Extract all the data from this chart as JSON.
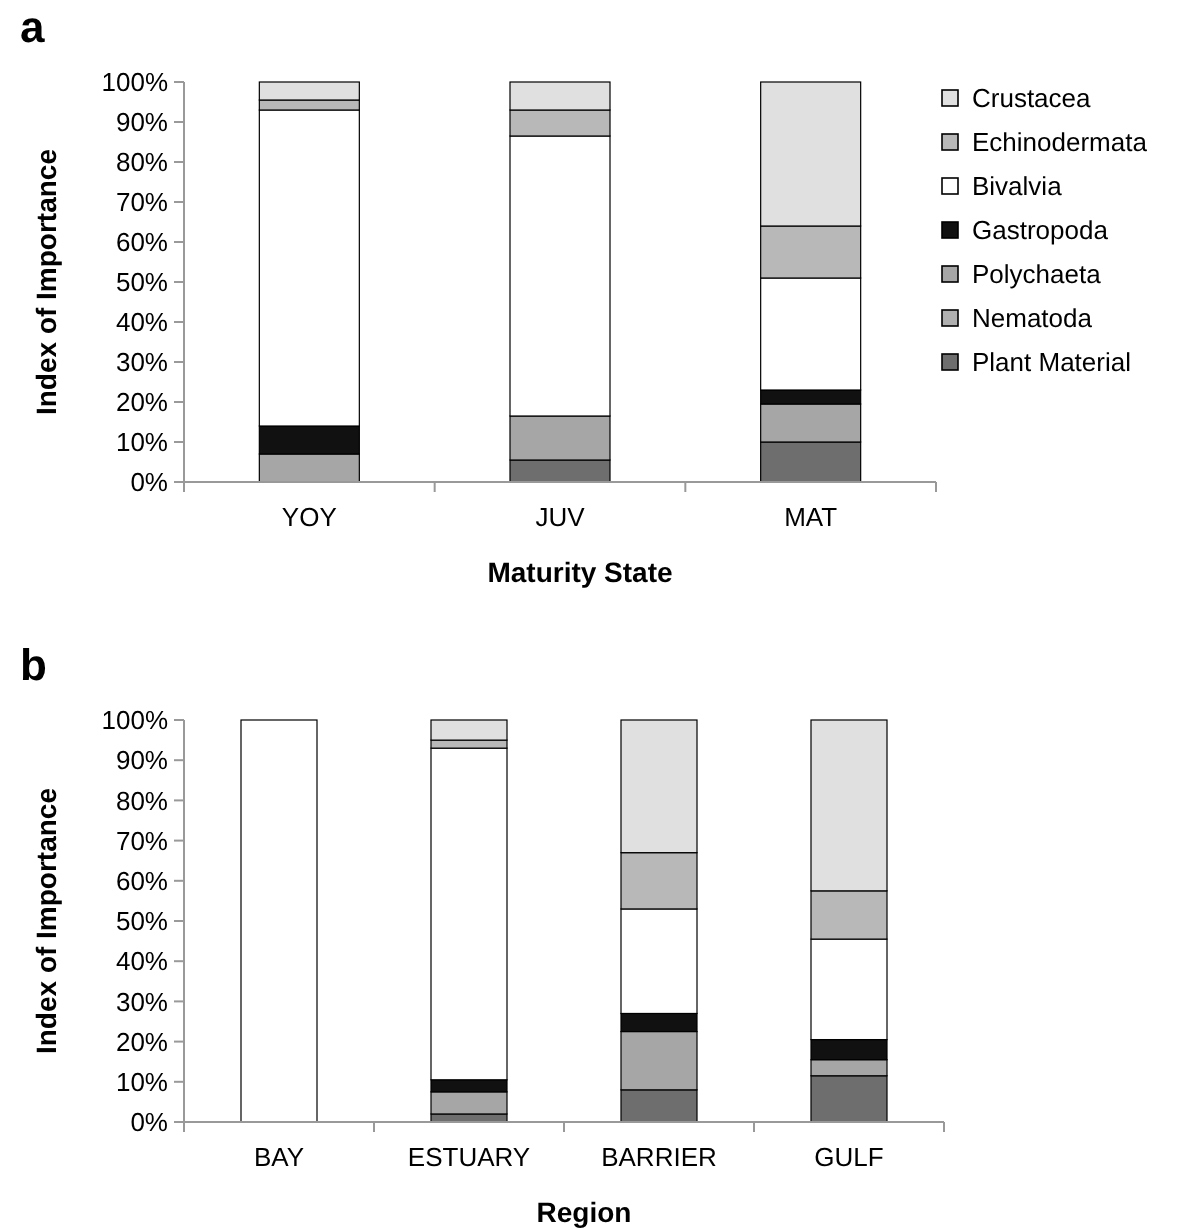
{
  "chart_data": [
    {
      "type": "bar",
      "title": "a",
      "xlabel": "Maturity State",
      "ylabel": "Index of Importance",
      "categories": [
        "YOY",
        "JUV",
        "MAT"
      ],
      "stacked": true,
      "ylim": [
        0,
        100
      ],
      "yticks": [
        {
          "value": 0,
          "label": "0%"
        },
        {
          "value": 10,
          "label": "10%"
        },
        {
          "value": 20,
          "label": "20%"
        },
        {
          "value": 30,
          "label": "30%"
        },
        {
          "value": 40,
          "label": "40%"
        },
        {
          "value": 50,
          "label": "50%"
        },
        {
          "value": 60,
          "label": "60%"
        },
        {
          "value": 70,
          "label": "70%"
        },
        {
          "value": 80,
          "label": "80%"
        },
        {
          "value": 90,
          "label": "90%"
        },
        {
          "value": 100,
          "label": "100%"
        }
      ],
      "legend": "right",
      "series": [
        {
          "name": "Plant Material",
          "color": "#6e6e6e",
          "values": [
            0,
            5.5,
            10
          ]
        },
        {
          "name": "Nematoda",
          "color": "#b0b0b0",
          "values": [
            0,
            0,
            null
          ]
        },
        {
          "name": "Polychaeta",
          "color": "#a6a6a6",
          "values": [
            7,
            11,
            9.5
          ]
        },
        {
          "name": "Gastropoda",
          "color": "#111111",
          "values": [
            7,
            0,
            3.5
          ]
        },
        {
          "name": "Bivalvia",
          "color": "#ffffff",
          "values": [
            79,
            70,
            28
          ]
        },
        {
          "name": "Echinodermata",
          "color": "#b8b8b8",
          "values": [
            2.5,
            6.5,
            13
          ]
        },
        {
          "name": "Crustacea",
          "color": "#e0e0e0",
          "values": [
            4.5,
            7,
            36
          ]
        }
      ]
    },
    {
      "type": "bar",
      "title": "b",
      "xlabel": "Region",
      "ylabel": "Index of Importance",
      "categories": [
        "BAY",
        "ESTUARY",
        "BARRIER",
        "GULF"
      ],
      "stacked": true,
      "ylim": [
        0,
        100
      ],
      "yticks": [
        {
          "value": 0,
          "label": "0%"
        },
        {
          "value": 10,
          "label": "10%"
        },
        {
          "value": 20,
          "label": "20%"
        },
        {
          "value": 30,
          "label": "30%"
        },
        {
          "value": 40,
          "label": "40%"
        },
        {
          "value": 50,
          "label": "50%"
        },
        {
          "value": 60,
          "label": "60%"
        },
        {
          "value": 70,
          "label": "70%"
        },
        {
          "value": 80,
          "label": "80%"
        },
        {
          "value": 90,
          "label": "90%"
        },
        {
          "value": 100,
          "label": "100%"
        }
      ],
      "legend": false,
      "series": [
        {
          "color": "#6e6e6e",
          "values": [
            0,
            2,
            8,
            11.5
          ]
        },
        {
          "color": "#a6a6a6",
          "values": [
            0,
            5.5,
            14.5,
            4
          ]
        },
        {
          "color": "#111111",
          "values": [
            0,
            3,
            4.5,
            5
          ]
        },
        {
          "color": "#ffffff",
          "values": [
            100,
            82.5,
            26,
            25
          ]
        },
        {
          "color": "#b8b8b8",
          "values": [
            0,
            2,
            14,
            12
          ]
        },
        {
          "color": "#e0e0e0",
          "values": [
            0,
            5,
            33,
            42.5
          ]
        }
      ]
    }
  ]
}
